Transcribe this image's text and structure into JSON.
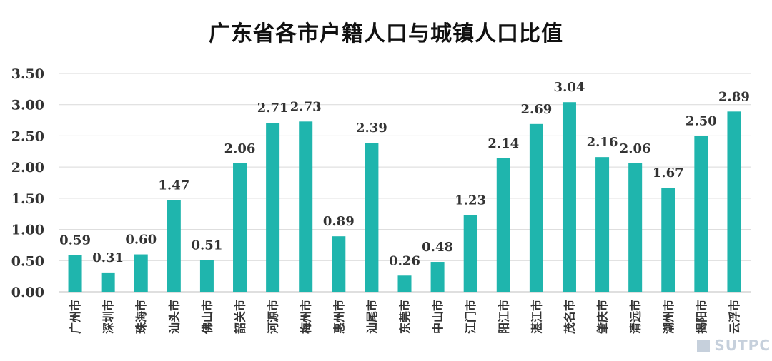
{
  "chart_data": {
    "type": "bar",
    "title": "广东省各市户籍人口与城镇人口比值",
    "xlabel": "",
    "ylabel": "",
    "ylim": [
      0,
      3.5
    ],
    "yticks": [
      "0.00",
      "0.50",
      "1.00",
      "1.50",
      "2.00",
      "2.50",
      "3.00",
      "3.50"
    ],
    "grid": true,
    "categories": [
      "广州市",
      "深圳市",
      "珠海市",
      "汕头市",
      "佛山市",
      "韶关市",
      "河源市",
      "梅州市",
      "惠州市",
      "汕尾市",
      "东莞市",
      "中山市",
      "江门市",
      "阳江市",
      "湛江市",
      "茂名市",
      "肇庆市",
      "清远市",
      "潮州市",
      "揭阳市",
      "云浮市"
    ],
    "values": [
      0.59,
      0.31,
      0.6,
      1.47,
      0.51,
      2.06,
      2.71,
      2.73,
      0.89,
      2.39,
      0.26,
      0.48,
      1.23,
      2.14,
      2.69,
      3.04,
      2.16,
      2.06,
      1.67,
      2.5,
      2.89
    ],
    "data_labels": [
      "0.59",
      "0.31",
      "0.60",
      "1.47",
      "0.51",
      "2.06",
      "2.71",
      "2.73",
      "0.89",
      "2.39",
      "0.26",
      "0.48",
      "1.23",
      "2.14",
      "2.69",
      "3.04",
      "2.16",
      "2.06",
      "1.67",
      "2.50",
      "2.89"
    ],
    "bar_color": "#1fb5ad",
    "grid_color": "#d9d9d9"
  },
  "watermark": {
    "text": "SUTPC"
  }
}
